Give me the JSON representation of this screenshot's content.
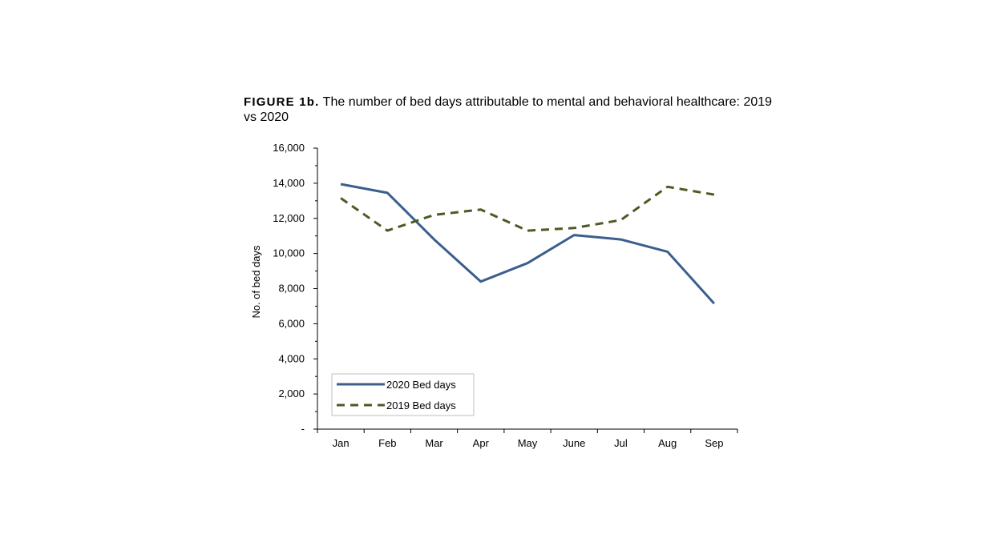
{
  "figure": {
    "label": "FIGURE 1b.",
    "caption": "The number of bed days attributable to mental and behavioral healthcare: 2019 vs 2020"
  },
  "colors": {
    "series_2020": "#3b5e8c",
    "series_2019": "#4e5a23",
    "axis": "#000000",
    "legend_border": "#bfbfbf"
  },
  "chart_data": {
    "type": "line",
    "title": "FIGURE 1b. The number of bed days attributable to mental and behavioral healthcare: 2019 vs 2020",
    "xlabel": "",
    "ylabel": "No. of bed days",
    "categories": [
      "Jan",
      "Feb",
      "Mar",
      "Apr",
      "May",
      "June",
      "Jul",
      "Aug",
      "Sep"
    ],
    "ylim": [
      0,
      16000
    ],
    "yticks": [
      0,
      2000,
      4000,
      6000,
      8000,
      10000,
      12000,
      14000,
      16000
    ],
    "ytick_labels": [
      "-",
      "2,000",
      "4,000",
      "6,000",
      "8,000",
      "10,000",
      "12,000",
      "14,000",
      "16,000"
    ],
    "grid": false,
    "legend_position": "bottom-left",
    "series": [
      {
        "name": "2020 Bed days",
        "style": "solid",
        "values": [
          13950,
          13450,
          10800,
          8400,
          9450,
          11050,
          10800,
          10100,
          7150
        ]
      },
      {
        "name": "2019 Bed days",
        "style": "dashed",
        "values": [
          13150,
          11300,
          12200,
          12500,
          11300,
          11450,
          11900,
          13800,
          13350
        ]
      }
    ]
  }
}
